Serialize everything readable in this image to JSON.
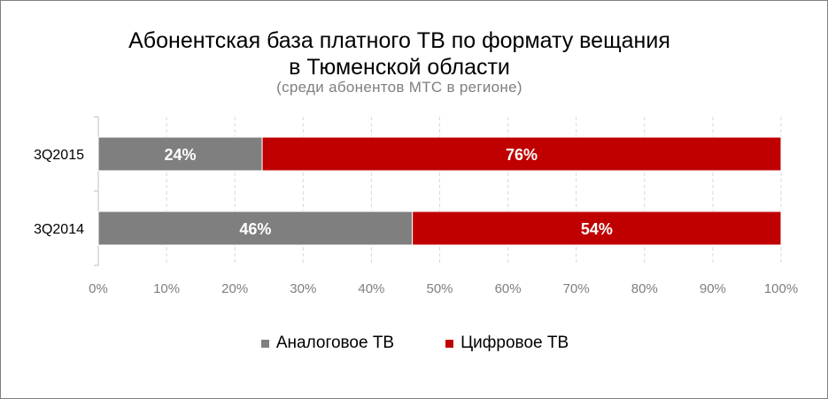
{
  "chart_data": {
    "type": "bar",
    "orientation": "horizontal",
    "stacked": true,
    "title_lines": [
      "Абонентская база платного ТВ по формату вещания",
      "в Тюменской области"
    ],
    "subtitle": "(среди абонентов МТС в регионе)",
    "categories": [
      "3Q2015",
      "3Q2014"
    ],
    "series": [
      {
        "name": "Аналоговое ТВ",
        "color": "#7f7f7f",
        "values": [
          24,
          46
        ],
        "labels": [
          "24%",
          "46%"
        ]
      },
      {
        "name": "Цифровое ТВ",
        "color": "#c00000",
        "values": [
          76,
          54
        ],
        "labels": [
          "76%",
          "54%"
        ]
      }
    ],
    "xlim": [
      0,
      100
    ],
    "xticks": [
      0,
      10,
      20,
      30,
      40,
      50,
      60,
      70,
      80,
      90,
      100
    ],
    "xtick_labels": [
      "0%",
      "10%",
      "20%",
      "30%",
      "40%",
      "50%",
      "60%",
      "70%",
      "80%",
      "90%",
      "100%"
    ],
    "grid": "vertical",
    "legend_position": "bottom"
  }
}
